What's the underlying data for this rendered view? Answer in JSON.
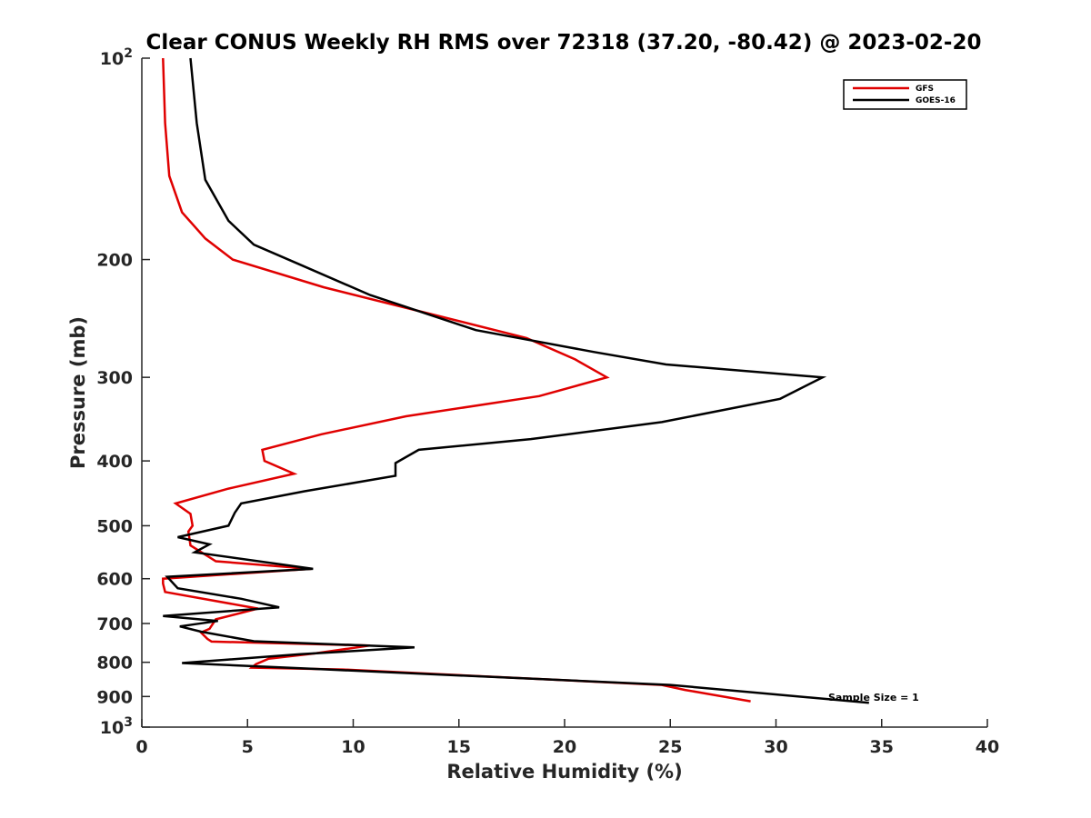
{
  "chart_data": {
    "type": "line",
    "title": "Clear CONUS Weekly RH RMS over 72318 (37.20, -80.42) @ 2023-02-20",
    "xlabel": "Relative Humidity (%)",
    "ylabel": "Pressure (mb)",
    "xlim": [
      0,
      40
    ],
    "ylim": [
      100,
      1000
    ],
    "yscale": "log",
    "y_reversed": true,
    "x_ticks": [
      "0",
      "5",
      "10",
      "15",
      "20",
      "25",
      "30",
      "35",
      "40"
    ],
    "y_ticks": [
      {
        "value": 100,
        "base": "10",
        "exp": "2"
      },
      {
        "value": 200,
        "base": "200",
        "exp": ""
      },
      {
        "value": 300,
        "base": "300",
        "exp": ""
      },
      {
        "value": 400,
        "base": "400",
        "exp": ""
      },
      {
        "value": 500,
        "base": "500",
        "exp": ""
      },
      {
        "value": 600,
        "base": "600",
        "exp": ""
      },
      {
        "value": 700,
        "base": "700",
        "exp": ""
      },
      {
        "value": 800,
        "base": "800",
        "exp": ""
      },
      {
        "value": 900,
        "base": "900",
        "exp": ""
      },
      {
        "value": 1000,
        "base": "10",
        "exp": "3"
      }
    ],
    "grid": false,
    "legend_position": "top-right",
    "series": [
      {
        "name": "GFS",
        "color": "#e00000",
        "x": [
          1.0,
          1.1,
          1.3,
          1.9,
          3.0,
          4.3,
          8.6,
          18.2,
          20.5,
          22.0,
          18.8,
          12.5,
          8.5,
          5.7,
          5.8,
          7.2,
          4.1,
          1.6,
          2.3,
          2.4,
          2.2,
          2.3,
          3.5,
          8.0,
          1.0,
          1.0,
          1.1,
          5.5,
          3.5,
          3.2,
          2.8,
          3.1,
          3.3,
          10.8,
          8.2,
          6.0,
          5.4,
          5.2,
          9.5,
          24.6,
          25.7,
          28.8
        ],
        "y": [
          100,
          125,
          150,
          170,
          186,
          200,
          220,
          262,
          282,
          300,
          320,
          343,
          365,
          385,
          400,
          418,
          440,
          463,
          480,
          500,
          510,
          535,
          565,
          580,
          600,
          610,
          628,
          665,
          690,
          713,
          722,
          738,
          745,
          755,
          776,
          790,
          805,
          815,
          820,
          865,
          880,
          915
        ]
      },
      {
        "name": "GOES-16",
        "color": "#000000",
        "x": [
          2.3,
          2.6,
          3.0,
          4.1,
          5.3,
          7.4,
          10.8,
          15.8,
          21.4,
          24.8,
          32.2,
          30.2,
          24.6,
          18.4,
          13.1,
          12.0,
          12.0,
          7.7,
          4.7,
          4.4,
          4.1,
          1.7,
          3.2,
          2.5,
          8.1,
          1.2,
          1.7,
          4.7,
          6.5,
          1.0,
          3.6,
          1.8,
          2.8,
          5.3,
          12.9,
          7.5,
          1.9,
          8.0,
          25.0,
          34.4
        ],
        "y": [
          100,
          125,
          152,
          175,
          190,
          203,
          226,
          255,
          275,
          287,
          300,
          323,
          350,
          371,
          385,
          403,
          421,
          444,
          463,
          478,
          500,
          520,
          533,
          548,
          580,
          596,
          620,
          643,
          662,
          682,
          694,
          707,
          720,
          744,
          760,
          778,
          802,
          818,
          865,
          920
        ]
      }
    ],
    "annotation": "Sample Size = 1"
  }
}
